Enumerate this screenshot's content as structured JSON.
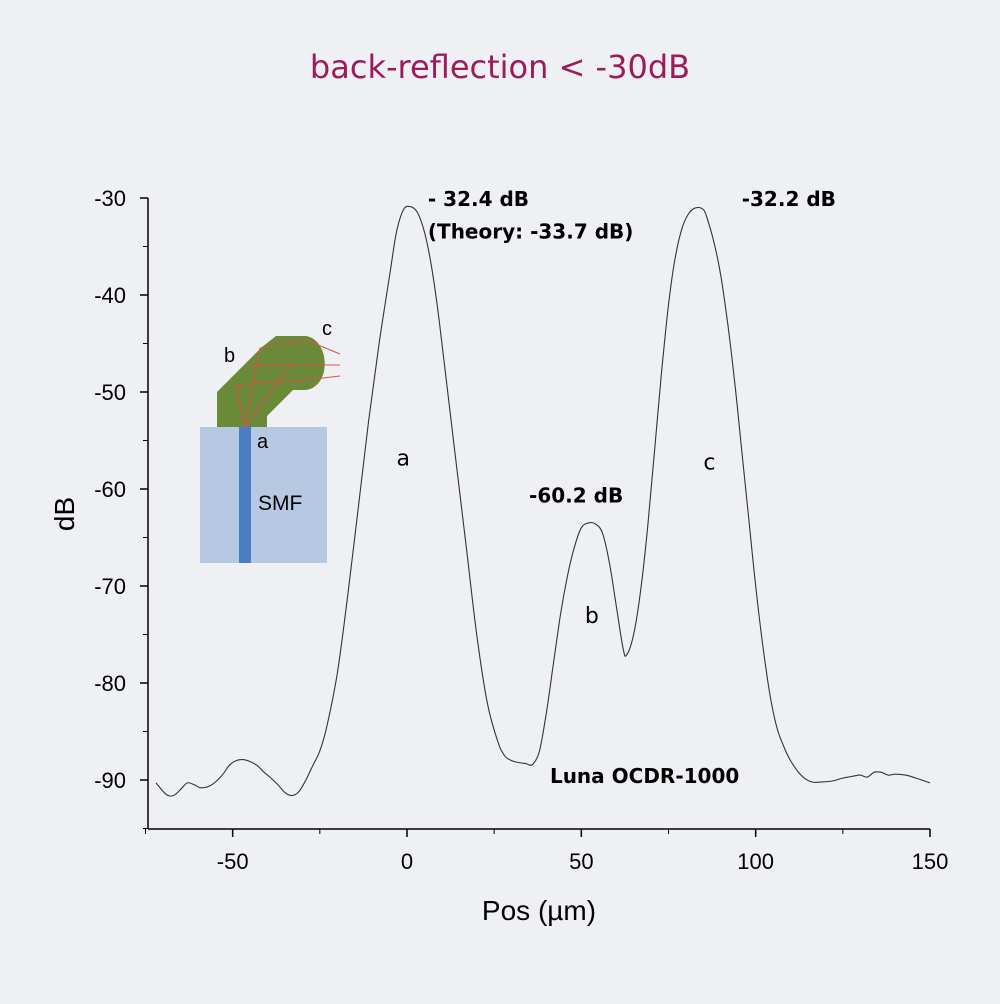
{
  "title": "back-reflection < -30dB",
  "chart_data": {
    "type": "line",
    "title": "back-reflection < -30dB",
    "xlabel": "Pos (µm)",
    "ylabel": "dB",
    "xlim": [
      -75,
      150
    ],
    "ylim": [
      -95,
      -30
    ],
    "x_ticks": [
      -50,
      0,
      50,
      100,
      150
    ],
    "y_ticks": [
      -30,
      -40,
      -50,
      -60,
      -70,
      -80,
      -90
    ],
    "x_tick_labels": [
      "-50",
      "0",
      "50",
      "100",
      "150"
    ],
    "y_tick_labels": [
      "-30",
      "-40",
      "-50",
      "-60",
      "-70",
      "-80",
      "-90"
    ],
    "grid": false,
    "series": [
      {
        "x": [
          -72,
          -69,
          -67,
          -65,
          -63,
          -61,
          -59,
          -56,
          -53,
          -51,
          -49,
          -47,
          -45,
          -43,
          -41,
          -39,
          -37,
          -35,
          -33,
          -31,
          -29,
          -27,
          -25,
          -23,
          -20,
          -17,
          -14,
          -11,
          -8,
          -5,
          -3,
          -1,
          1,
          3,
          5,
          7,
          9,
          11,
          14,
          17,
          20,
          23,
          26,
          28,
          30,
          32,
          34,
          36,
          38,
          40,
          42,
          44,
          46,
          48,
          50,
          52,
          54,
          56,
          58,
          60,
          62,
          63,
          65,
          67,
          69,
          71,
          73,
          75,
          77,
          79,
          81,
          83,
          85,
          86,
          88,
          90,
          92,
          94,
          96,
          98,
          100,
          102,
          104,
          106,
          108,
          110,
          113,
          116,
          119,
          122,
          125,
          128,
          130,
          132,
          134,
          136,
          138,
          140,
          143,
          146,
          150
        ],
        "y": [
          -90.3,
          -91.5,
          -91.6,
          -91.0,
          -90.3,
          -90.5,
          -90.8,
          -90.5,
          -89.5,
          -88.5,
          -88.0,
          -87.9,
          -88.1,
          -88.5,
          -89.2,
          -89.8,
          -90.5,
          -91.3,
          -91.6,
          -91.2,
          -90.0,
          -88.5,
          -87.0,
          -84.5,
          -79.0,
          -71.0,
          -62.0,
          -53.0,
          -45.0,
          -38.0,
          -33.5,
          -31.2,
          -30.9,
          -31.5,
          -33.5,
          -37.0,
          -42.0,
          -48.0,
          -57.0,
          -66.0,
          -75.0,
          -82.0,
          -86.0,
          -87.5,
          -88.0,
          -88.2,
          -88.3,
          -88.4,
          -87.0,
          -83.0,
          -78.0,
          -73.0,
          -69.0,
          -66.0,
          -64.0,
          -63.5,
          -63.6,
          -64.5,
          -67.5,
          -72.0,
          -76.5,
          -77.1,
          -75.0,
          -70.5,
          -64.0,
          -56.0,
          -48.0,
          -41.0,
          -36.0,
          -33.0,
          -31.5,
          -31.0,
          -31.2,
          -32.0,
          -34.5,
          -38.0,
          -43.0,
          -49.0,
          -56.0,
          -63.0,
          -70.0,
          -76.0,
          -81.0,
          -84.5,
          -86.5,
          -88.0,
          -89.5,
          -90.2,
          -90.2,
          -90.1,
          -89.8,
          -89.6,
          -89.5,
          -89.7,
          -89.2,
          -89.2,
          -89.5,
          -89.4,
          -89.5,
          -89.8,
          -90.3
        ]
      }
    ],
    "annotations": [
      {
        "text": "- 32.4 dB",
        "x": 6,
        "y": -30.8
      },
      {
        "text": "(Theory: -33.7 dB)",
        "x": 6,
        "y": -34.2
      },
      {
        "text": "-32.2 dB",
        "x": 96,
        "y": -30.8
      },
      {
        "text": "-60.2 dB",
        "x": 35,
        "y": -61.4
      },
      {
        "text": "a",
        "x": -3,
        "y": -57.6
      },
      {
        "text": "b",
        "x": 51,
        "y": -73.8
      },
      {
        "text": "c",
        "x": 85,
        "y": -58
      },
      {
        "text": "Luna OCDR-1000",
        "x": 41,
        "y": -90.3
      }
    ]
  },
  "inset": {
    "labels": {
      "a": "a",
      "b": "b",
      "c": "c",
      "smf": "SMF"
    },
    "colors": {
      "cladding": "#b5c9e3",
      "core": "#4a7dc4",
      "lens": "#6a8a3a",
      "rays": "#d9534f"
    }
  },
  "colors": {
    "background": "#eef0f4",
    "title": "#9c1b5b",
    "line": "#333333",
    "text": "#000000"
  }
}
